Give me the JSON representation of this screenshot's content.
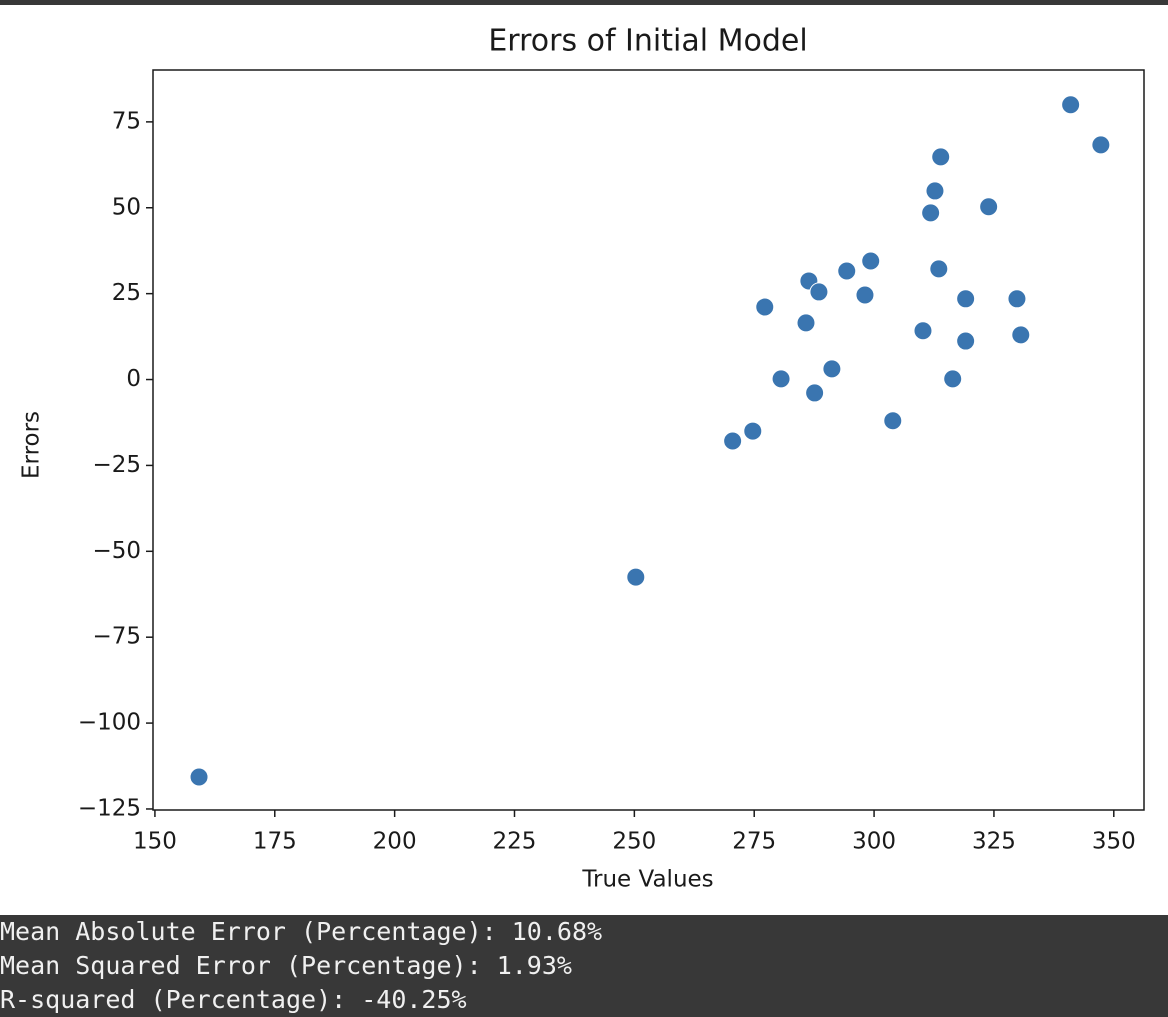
{
  "chart_data": {
    "type": "scatter",
    "title": "Errors of Initial Model",
    "x_label": "True Values",
    "y_label": "Errors",
    "x": [
      159.2,
      250.3,
      270.5,
      274.7,
      277.2,
      280.6,
      285.8,
      286.4,
      287.6,
      288.5,
      291.2,
      294.3,
      298.1,
      299.3,
      303.9,
      310.2,
      311.8,
      312.7,
      313.5,
      313.9,
      316.4,
      319.1,
      319.1,
      323.9,
      329.8,
      330.6,
      341.0,
      347.3
    ],
    "y": [
      -115.7,
      -57.5,
      -17.9,
      -15.0,
      21.1,
      0.2,
      16.5,
      28.7,
      -3.9,
      25.5,
      3.1,
      31.6,
      24.6,
      34.5,
      -12.0,
      14.2,
      48.5,
      54.9,
      32.2,
      64.8,
      0.2,
      23.5,
      11.2,
      50.3,
      23.5,
      13.0,
      80.0,
      68.3
    ],
    "color": "#3a75b0",
    "xlim": [
      149.6,
      356.3
    ],
    "ylim": [
      -125.3,
      90.1
    ],
    "xticks": [
      150,
      175,
      200,
      225,
      250,
      275,
      300,
      325,
      350
    ],
    "yticks": [
      {
        "value": -125,
        "label": "−125"
      },
      {
        "value": -100,
        "label": "−100"
      },
      {
        "value": -75,
        "label": "−75"
      },
      {
        "value": -50,
        "label": "−50"
      },
      {
        "value": -25,
        "label": "−25"
      },
      0,
      25,
      50,
      75
    ]
  },
  "output": [
    "Mean Absolute Error (Percentage): 10.68%",
    "Mean Squared Error (Percentage): 1.93%",
    "R-squared (Percentage): -40.25%"
  ]
}
